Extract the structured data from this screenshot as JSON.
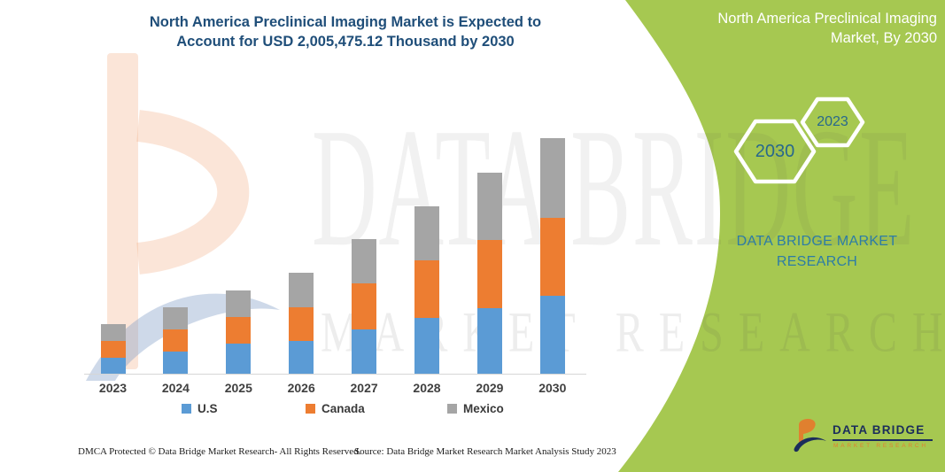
{
  "header": {
    "title_line1": "North America Preclinical Imaging Market is Expected to",
    "title_line2": "Account for USD 2,005,475.12 Thousand by 2030"
  },
  "side_panel": {
    "title_line1": "North America Preclinical Imaging",
    "title_line2": "Market, By 2030",
    "hexagon_back_label": "2030",
    "hexagon_front_label": "2023",
    "brand_line1": "DATA BRIDGE MARKET",
    "brand_line2": "RESEARCH",
    "logo_name": "DATA BRIDGE",
    "logo_subtitle": "MARKET RESEARCH",
    "panel_color": "#a6c851",
    "brand_text_color": "#2c7ca6"
  },
  "watermark": {
    "line1": "DATA BRIDGE",
    "line2": "MARKET RESEARCH"
  },
  "footer": {
    "left": "DMCA Protected © Data Bridge Market Research-  All Rights Reserved.",
    "right": "Source: Data Bridge Market Research  Market Analysis Study 2023"
  },
  "chart_data": {
    "type": "bar",
    "stacked": true,
    "title": "North America Preclinical Imaging Market is Expected to Account for USD 2,005,475.12 Thousand by 2030",
    "unit": "USD Thousand",
    "categories": [
      "2023",
      "2024",
      "2025",
      "2026",
      "2027",
      "2028",
      "2029",
      "2030"
    ],
    "series": [
      {
        "name": "U.S",
        "color": "#5B9BD5",
        "values": [
          133600,
          191000,
          254400,
          279300,
          379700,
          477800,
          561600,
          667200
        ]
      },
      {
        "name": "Canada",
        "color": "#ED7D31",
        "values": [
          145700,
          188700,
          226400,
          286800,
          387300,
          485400,
          578200,
          664200
        ]
      },
      {
        "name": "Mexico",
        "color": "#A5A5A5",
        "values": [
          143400,
          188700,
          231700,
          292100,
          377400,
          465700,
          571400,
          674075.12
        ]
      }
    ],
    "totals_by_year": [
      422700,
      568400,
      712500,
      858200,
      1144400,
      1428900,
      1711200,
      2005475.12
    ],
    "highlight_total_2030": 2005475.12,
    "note": "Segment values estimated from bar heights; 2030 total stated on chart as USD 2,005,475.12 Thousand",
    "legend_position": "bottom",
    "xlabel": "",
    "ylabel": "",
    "ylim": [
      0,
      2200000
    ],
    "gridlines": false,
    "y_axis_visible": false
  },
  "colors": {
    "title_navy": "#1f4e79",
    "axis_line": "#d6d6d6",
    "axis_label": "#404040",
    "hexagon_text": "#28688c",
    "logo_navy": "#1b2d5b",
    "logo_orange": "#e0802f"
  }
}
